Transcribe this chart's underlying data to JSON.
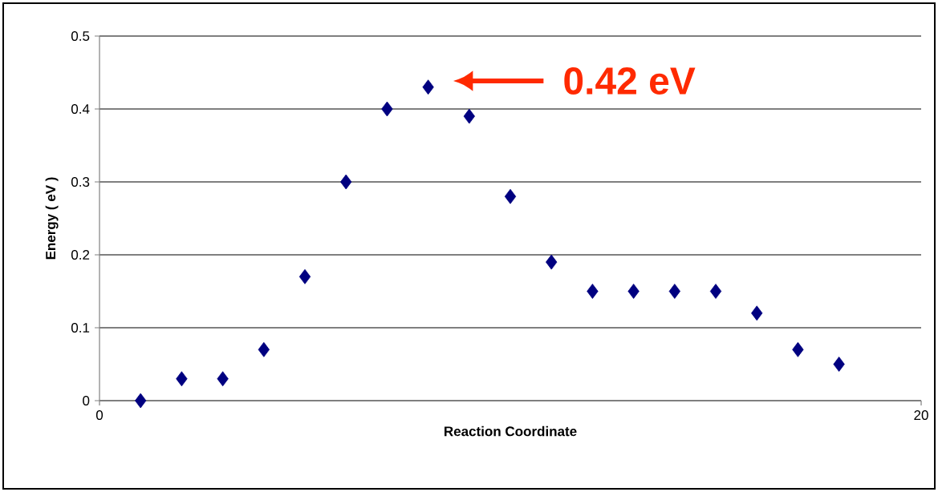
{
  "chart_data": {
    "type": "scatter",
    "xlabel": "Reaction Coordinate",
    "ylabel": "Energy ( eV )",
    "x": [
      1,
      2,
      3,
      4,
      5,
      6,
      7,
      8,
      9,
      10,
      11,
      12,
      13,
      14,
      15,
      16,
      17,
      18
    ],
    "values": [
      0,
      0.03,
      0.03,
      0.07,
      0.17,
      0.3,
      0.4,
      0.43,
      0.39,
      0.28,
      0.19,
      0.15,
      0.15,
      0.15,
      0.15,
      0.12,
      0.07,
      0.05
    ],
    "color": "#000080",
    "marker": "diamond",
    "xlim": [
      0,
      20
    ],
    "xticks": [
      0,
      20
    ],
    "ylim": [
      0,
      0.5
    ],
    "yticks": [
      0,
      0.1,
      0.2,
      0.3,
      0.4,
      0.5
    ],
    "grid": "y",
    "annotations": [
      "0.42 eV"
    ]
  }
}
